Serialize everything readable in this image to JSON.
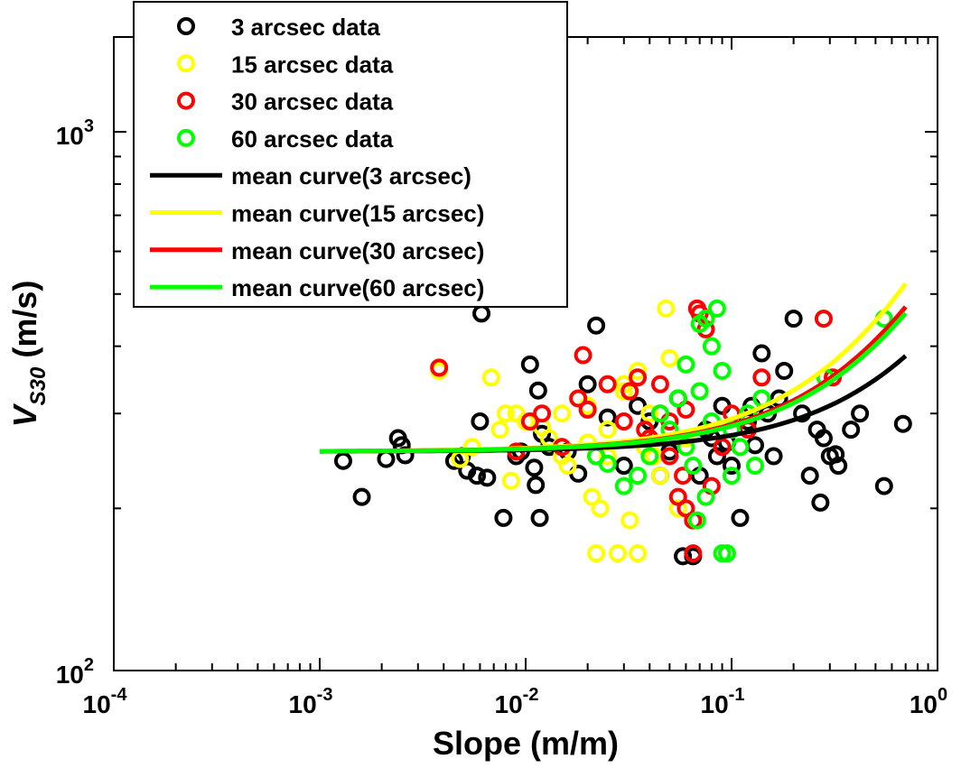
{
  "chart_data": {
    "type": "scatter",
    "title": "",
    "xlabel": "Slope (m/m)",
    "ylabel_main": "V",
    "ylabel_sub": "S30",
    "ylabel_unit": " (m/s)",
    "xscale": "log",
    "yscale": "log",
    "xlim": [
      0.0001,
      1
    ],
    "ylim": [
      100,
      1500
    ],
    "grid": false,
    "legend_position": "top-left",
    "x_ticks": [
      {
        "value": 0.0001,
        "base": "10",
        "exp": "-4"
      },
      {
        "value": 0.001,
        "base": "10",
        "exp": "-3"
      },
      {
        "value": 0.01,
        "base": "10",
        "exp": "-2"
      },
      {
        "value": 0.1,
        "base": "10",
        "exp": "-1"
      },
      {
        "value": 1,
        "base": "10",
        "exp": "0"
      }
    ],
    "y_ticks": [
      {
        "value": 100,
        "base": "10",
        "exp": "2"
      },
      {
        "value": 1000,
        "base": "10",
        "exp": "3"
      }
    ],
    "series": [
      {
        "name": "3 arcsec data",
        "kind": "marker",
        "color": "#000000",
        "points": [
          [
            0.0013,
            245
          ],
          [
            0.0016,
            210
          ],
          [
            0.0021,
            247
          ],
          [
            0.0024,
            270
          ],
          [
            0.0025,
            262
          ],
          [
            0.0026,
            251
          ],
          [
            0.0045,
            245
          ],
          [
            0.0049,
            250
          ],
          [
            0.0052,
            235
          ],
          [
            0.0058,
            230
          ],
          [
            0.006,
            290
          ],
          [
            0.0061,
            460
          ],
          [
            0.0065,
            228
          ],
          [
            0.0078,
            192
          ],
          [
            0.009,
            250
          ],
          [
            0.0095,
            255
          ],
          [
            0.0105,
            370
          ],
          [
            0.011,
            238
          ],
          [
            0.0112,
            221
          ],
          [
            0.0115,
            331
          ],
          [
            0.0117,
            192
          ],
          [
            0.012,
            275
          ],
          [
            0.013,
            260
          ],
          [
            0.016,
            255
          ],
          [
            0.018,
            232
          ],
          [
            0.02,
            340
          ],
          [
            0.022,
            437
          ],
          [
            0.025,
            295
          ],
          [
            0.03,
            240
          ],
          [
            0.035,
            310
          ],
          [
            0.04,
            270
          ],
          [
            0.045,
            230
          ],
          [
            0.05,
            255
          ],
          [
            0.058,
            163
          ],
          [
            0.065,
            163
          ],
          [
            0.07,
            230
          ],
          [
            0.08,
            270
          ],
          [
            0.09,
            310
          ],
          [
            0.1,
            240
          ],
          [
            0.11,
            192
          ],
          [
            0.12,
            290
          ],
          [
            0.13,
            262
          ],
          [
            0.14,
            388
          ],
          [
            0.15,
            300
          ],
          [
            0.16,
            250
          ],
          [
            0.17,
            320
          ],
          [
            0.18,
            360
          ],
          [
            0.2,
            450
          ],
          [
            0.22,
            300
          ],
          [
            0.24,
            230
          ],
          [
            0.26,
            280
          ],
          [
            0.28,
            270
          ],
          [
            0.3,
            250
          ],
          [
            0.32,
            252
          ],
          [
            0.33,
            240
          ],
          [
            0.38,
            280
          ],
          [
            0.42,
            300
          ],
          [
            0.55,
            220
          ],
          [
            0.68,
            287
          ],
          [
            0.04,
            290
          ],
          [
            0.055,
            320
          ],
          [
            0.075,
            280
          ],
          [
            0.085,
            250
          ],
          [
            0.095,
            265
          ],
          [
            0.125,
            310
          ],
          [
            0.27,
            205
          ]
        ]
      },
      {
        "name": "15 arcsec data",
        "kind": "marker",
        "color": "#ffff00",
        "points": [
          [
            0.0038,
            360
          ],
          [
            0.0048,
            247
          ],
          [
            0.0055,
            260
          ],
          [
            0.0068,
            350
          ],
          [
            0.0075,
            280
          ],
          [
            0.008,
            300
          ],
          [
            0.0085,
            225
          ],
          [
            0.009,
            300
          ],
          [
            0.01,
            290
          ],
          [
            0.012,
            283
          ],
          [
            0.013,
            270
          ],
          [
            0.015,
            300
          ],
          [
            0.016,
            240
          ],
          [
            0.018,
            320
          ],
          [
            0.02,
            310
          ],
          [
            0.021,
            210
          ],
          [
            0.022,
            165
          ],
          [
            0.023,
            200
          ],
          [
            0.025,
            250
          ],
          [
            0.028,
            165
          ],
          [
            0.03,
            340
          ],
          [
            0.032,
            190
          ],
          [
            0.035,
            165
          ],
          [
            0.038,
            260
          ],
          [
            0.04,
            300
          ],
          [
            0.045,
            230
          ],
          [
            0.048,
            470
          ],
          [
            0.05,
            380
          ],
          [
            0.055,
            200
          ],
          [
            0.06,
            270
          ],
          [
            0.02,
            265
          ],
          [
            0.025,
            280
          ],
          [
            0.03,
            330
          ],
          [
            0.035,
            360
          ],
          [
            0.015,
            250
          ],
          [
            0.042,
            250
          ]
        ]
      },
      {
        "name": "30 arcsec data",
        "kind": "marker",
        "color": "#ff0000",
        "points": [
          [
            0.0038,
            365
          ],
          [
            0.009,
            255
          ],
          [
            0.0105,
            290
          ],
          [
            0.012,
            300
          ],
          [
            0.015,
            260
          ],
          [
            0.018,
            320
          ],
          [
            0.019,
            385
          ],
          [
            0.02,
            305
          ],
          [
            0.022,
            250
          ],
          [
            0.025,
            340
          ],
          [
            0.03,
            290
          ],
          [
            0.032,
            330
          ],
          [
            0.035,
            350
          ],
          [
            0.038,
            280
          ],
          [
            0.04,
            270
          ],
          [
            0.045,
            300
          ],
          [
            0.05,
            250
          ],
          [
            0.055,
            210
          ],
          [
            0.06,
            200
          ],
          [
            0.065,
            165
          ],
          [
            0.068,
            470
          ],
          [
            0.07,
            460
          ],
          [
            0.075,
            430
          ],
          [
            0.08,
            220
          ],
          [
            0.09,
            260
          ],
          [
            0.1,
            300
          ],
          [
            0.12,
            280
          ],
          [
            0.14,
            350
          ],
          [
            0.28,
            450
          ],
          [
            0.31,
            350
          ],
          [
            0.045,
            340
          ],
          [
            0.05,
            290
          ],
          [
            0.058,
            230
          ],
          [
            0.065,
            190
          ],
          [
            0.06,
            305
          ]
        ]
      },
      {
        "name": "60 arcsec data",
        "kind": "marker",
        "color": "#00ff00",
        "points": [
          [
            0.022,
            250
          ],
          [
            0.025,
            242
          ],
          [
            0.03,
            220
          ],
          [
            0.035,
            230
          ],
          [
            0.04,
            250
          ],
          [
            0.045,
            300
          ],
          [
            0.05,
            280
          ],
          [
            0.055,
            320
          ],
          [
            0.06,
            260
          ],
          [
            0.065,
            240
          ],
          [
            0.068,
            190
          ],
          [
            0.07,
            440
          ],
          [
            0.075,
            450
          ],
          [
            0.08,
            400
          ],
          [
            0.085,
            470
          ],
          [
            0.09,
            165
          ],
          [
            0.095,
            165
          ],
          [
            0.1,
            280
          ],
          [
            0.11,
            260
          ],
          [
            0.12,
            300
          ],
          [
            0.13,
            240
          ],
          [
            0.14,
            320
          ],
          [
            0.285,
            350
          ],
          [
            0.55,
            450
          ],
          [
            0.06,
            370
          ],
          [
            0.07,
            330
          ],
          [
            0.08,
            290
          ],
          [
            0.09,
            360
          ],
          [
            0.1,
            230
          ],
          [
            0.075,
            210
          ]
        ]
      },
      {
        "name": "mean curve(3 arcsec)",
        "kind": "line",
        "color": "#000000",
        "a": 255,
        "b": 18.4
      },
      {
        "name": "mean curve(15 arcsec)",
        "kind": "line",
        "color": "#ffff00",
        "a": 255,
        "b": 38.2
      },
      {
        "name": "mean curve(30 arcsec)",
        "kind": "line",
        "color": "#ff0000",
        "a": 255,
        "b": 31.2
      },
      {
        "name": "mean curve(60 arcsec)",
        "kind": "line",
        "color": "#00ff00",
        "a": 255,
        "b": 29.4
      }
    ],
    "line_x_range": [
      0.001,
      0.7
    ]
  }
}
